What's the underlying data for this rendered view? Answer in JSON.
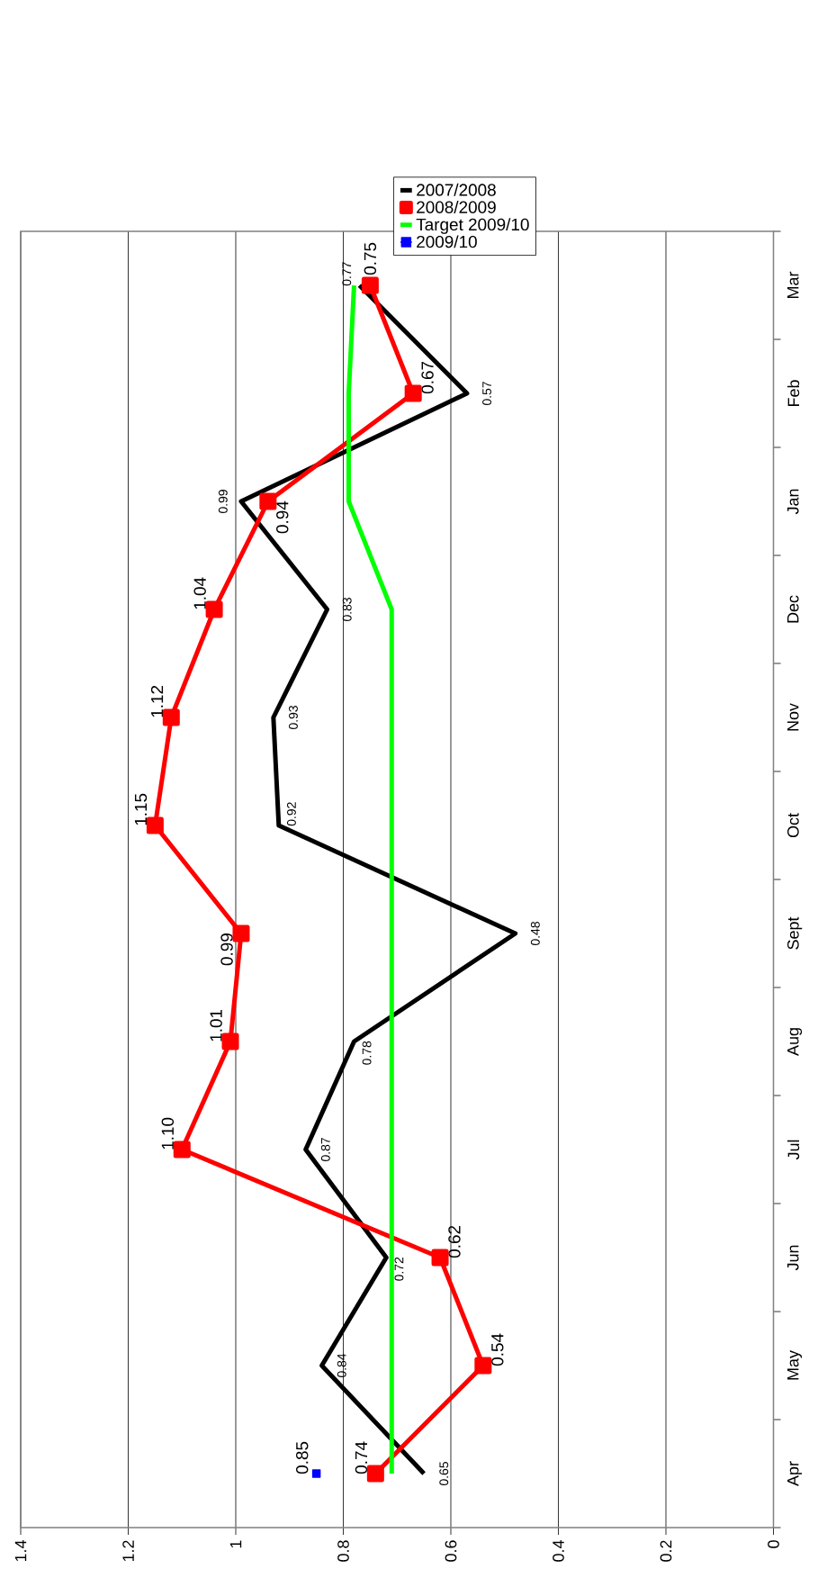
{
  "chart_data": {
    "type": "line",
    "orientation": "horizontal",
    "categories": [
      "Mar",
      "Feb",
      "Jan",
      "Dec",
      "Nov",
      "Oct",
      "Sept",
      "Aug",
      "Jul",
      "Jun",
      "May",
      "Apr"
    ],
    "series": [
      {
        "name": "2007/2008",
        "color": "#000000",
        "marker": "none",
        "values": [
          0.77,
          0.57,
          0.99,
          0.83,
          0.93,
          0.92,
          0.48,
          0.78,
          0.87,
          0.72,
          0.84,
          0.65
        ],
        "value_labels": [
          "0.77",
          "0.57",
          "0.99",
          "0.83",
          "0.93",
          "0.92",
          "0.48",
          "0.78",
          "0.87",
          "0.72",
          "0.84",
          "0.65"
        ]
      },
      {
        "name": "2008/2009",
        "color": "#ff0000",
        "marker": "square",
        "values": [
          0.75,
          0.67,
          0.94,
          1.04,
          1.12,
          1.15,
          0.99,
          1.01,
          1.1,
          0.62,
          0.54,
          0.74
        ],
        "value_labels": [
          "0.75",
          "0.67",
          "0.94",
          "1.04",
          "1.12",
          "1.15",
          "0.99",
          "1.01",
          "1.10",
          "0.62",
          "0.54",
          "0.74"
        ]
      },
      {
        "name": "Target 2009/10",
        "color": "#00ff00",
        "marker": "none",
        "values": [
          0.78,
          0.79,
          0.79,
          0.71,
          0.71,
          0.71,
          0.71,
          0.71,
          0.71,
          0.71,
          0.71,
          0.71
        ]
      },
      {
        "name": "2009/10",
        "color": "#0000ff",
        "marker": "square",
        "values": [
          null,
          null,
          null,
          null,
          null,
          null,
          null,
          null,
          null,
          null,
          null,
          0.85
        ],
        "value_labels": [
          null,
          null,
          null,
          null,
          null,
          null,
          null,
          null,
          null,
          null,
          null,
          "0.85"
        ]
      }
    ],
    "xlim": [
      1.4,
      0
    ],
    "xticks": [
      0,
      0.2,
      0.4,
      0.6,
      0.8,
      1,
      1.2,
      1.4
    ],
    "grid": "x",
    "legend": "top"
  }
}
